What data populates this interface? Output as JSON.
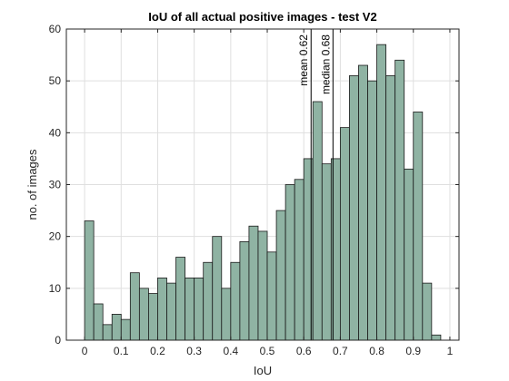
{
  "chart_data": {
    "type": "bar",
    "title": "IoU of all actual positive images - test V2",
    "xlabel": "IoU",
    "ylabel": "no. of images",
    "xlim": [
      -0.05,
      1.025
    ],
    "ylim": [
      0,
      60
    ],
    "xticks": [
      "0",
      "0.1",
      "0.2",
      "0.3",
      "0.4",
      "0.5",
      "0.6",
      "0.7",
      "0.8",
      "0.9",
      "1"
    ],
    "yticks": [
      "0",
      "10",
      "20",
      "30",
      "40",
      "50",
      "60"
    ],
    "grid": true,
    "bin_width": 0.025,
    "bin_starts": [
      0,
      0.025,
      0.05,
      0.075,
      0.1,
      0.125,
      0.15,
      0.175,
      0.2,
      0.225,
      0.25,
      0.275,
      0.3,
      0.325,
      0.35,
      0.375,
      0.4,
      0.425,
      0.45,
      0.475,
      0.5,
      0.525,
      0.55,
      0.575,
      0.6,
      0.625,
      0.65,
      0.675,
      0.7,
      0.725,
      0.75,
      0.775,
      0.8,
      0.825,
      0.85,
      0.875,
      0.9,
      0.925,
      0.95
    ],
    "values": [
      23,
      7,
      3,
      5,
      4,
      13,
      10,
      9,
      12,
      11,
      16,
      12,
      12,
      15,
      20,
      10,
      15,
      19,
      22,
      21,
      17,
      25,
      30,
      31,
      35,
      46,
      34,
      35,
      41,
      51,
      53,
      50,
      57,
      51,
      54,
      33,
      44,
      11,
      1
    ],
    "bar_color": "#8fb3a3",
    "bar_edge_color": "#1a1a1a",
    "annotations": [
      {
        "label": "mean 0.62",
        "x": 0.62
      },
      {
        "label": "median 0.68",
        "x": 0.68
      }
    ]
  }
}
